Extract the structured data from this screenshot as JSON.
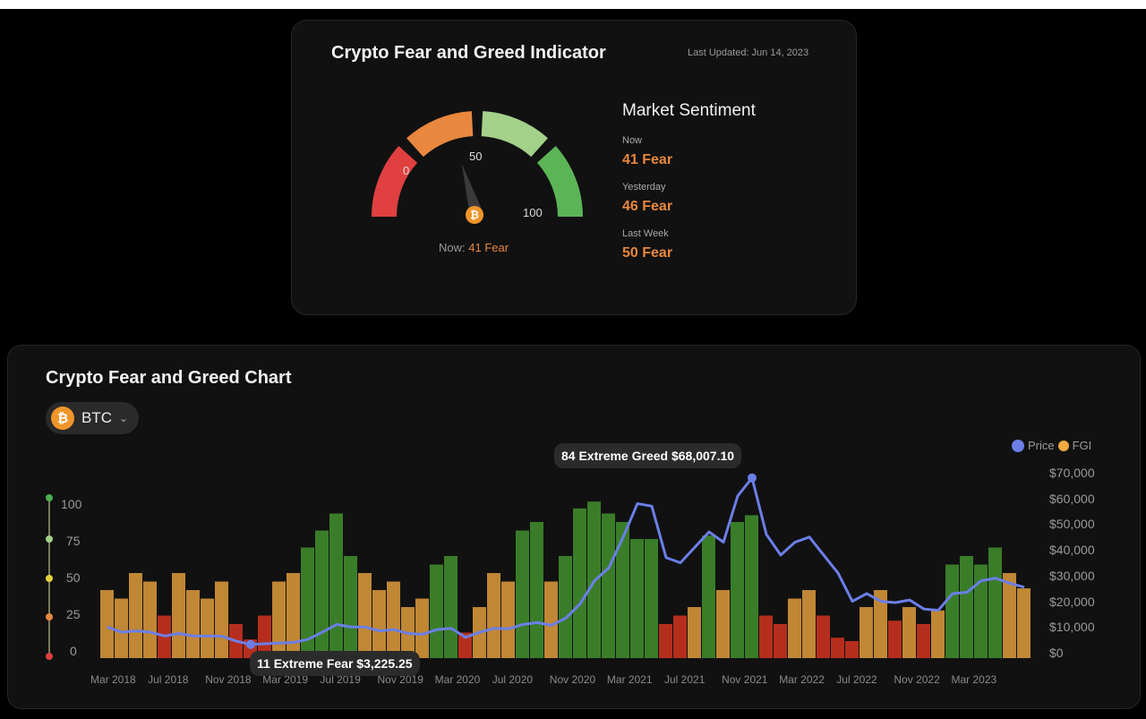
{
  "indicator": {
    "title": "Crypto Fear and Greed Indicator",
    "last_updated": "Last Updated: Jun 14, 2023",
    "gauge": {
      "value": 41,
      "label_min": "0",
      "label_mid": "50",
      "label_max": "100",
      "now_prefix": "Now:",
      "now_value": "41 Fear",
      "segment_colors": [
        "#e04040",
        "#e8873e",
        "#a3d18a",
        "#5bb556"
      ],
      "icon": "bitcoin-icon"
    },
    "sentiment": {
      "title": "Market Sentiment",
      "rows": [
        {
          "label": "Now",
          "value": "41 Fear"
        },
        {
          "label": "Yesterday",
          "value": "46 Fear"
        },
        {
          "label": "Last Week",
          "value": "50 Fear"
        }
      ]
    }
  },
  "chart_section": {
    "title": "Crypto Fear and Greed Chart",
    "selector": {
      "value": "BTC",
      "icon": "bitcoin-icon"
    },
    "legend": [
      {
        "label": "Price",
        "color": "#6b7fe8"
      },
      {
        "label": "FGI",
        "color": "#f0a840"
      }
    ],
    "fgi_axis": [
      "100",
      "75",
      "50",
      "25",
      "0"
    ],
    "fgi_axis_colors": [
      "#4caf50",
      "#a3d18a",
      "#e6d23a",
      "#e8873e",
      "#e04040"
    ],
    "price_axis": [
      "$70,000",
      "$60,000",
      "$50,000",
      "$40,000",
      "$30,000",
      "$20,000",
      "$10,000",
      "$0"
    ],
    "x_labels": [
      "Mar 2018",
      "Jul 2018",
      "Nov 2018",
      "Mar 2019",
      "Jul 2019",
      "Nov 2019",
      "Mar 2020",
      "Jul 2020",
      "Nov 2020",
      "Mar 2021",
      "Jul 2021",
      "Nov 2021",
      "Mar 2022",
      "Jul 2022",
      "Nov 2022",
      "Mar 2023"
    ],
    "tooltip_low": "11 Extreme Fear $3,225.25",
    "tooltip_high": "84 Extreme Greed $68,007.10"
  },
  "chart_data": {
    "type": "bar",
    "x_start": "Feb 2018",
    "x_end": "Jun 2023",
    "price_range": [
      0,
      70000
    ],
    "fgi_range": [
      0,
      100
    ],
    "fgi_colors": {
      "fear_extreme": "#c8321f",
      "fear": "#d4953a",
      "greed": "#3f8a2c"
    },
    "series": [
      {
        "name": "FGI",
        "type": "bar",
        "values": [
          40,
          35,
          50,
          45,
          25,
          50,
          40,
          35,
          45,
          20,
          11,
          25,
          45,
          50,
          65,
          75,
          85,
          60,
          50,
          40,
          45,
          30,
          35,
          55,
          60,
          15,
          30,
          50,
          45,
          75,
          80,
          45,
          60,
          88,
          92,
          85,
          80,
          70,
          70,
          20,
          25,
          30,
          72,
          40,
          80,
          84,
          25,
          20,
          35,
          40,
          25,
          12,
          10,
          30,
          40,
          22,
          30,
          20,
          28,
          55,
          60,
          55,
          65,
          50,
          41
        ]
      },
      {
        "name": "Price",
        "type": "line",
        "values": [
          10000,
          8000,
          8500,
          8000,
          6500,
          7500,
          6500,
          6500,
          6400,
          4500,
          3225.25,
          3500,
          3800,
          4000,
          5200,
          8000,
          11000,
          10000,
          10000,
          8500,
          9000,
          7500,
          7200,
          9000,
          9500,
          6000,
          8000,
          9500,
          9300,
          11000,
          11700,
          10700,
          13500,
          19000,
          28000,
          33000,
          45000,
          58000,
          57000,
          37000,
          35000,
          41000,
          47000,
          43000,
          61000,
          68007.1,
          46000,
          38000,
          43000,
          45000,
          38000,
          31000,
          20000,
          23000,
          20000,
          19500,
          20500,
          17000,
          16500,
          23000,
          23500,
          28000,
          29000,
          27000,
          25500
        ]
      }
    ]
  }
}
